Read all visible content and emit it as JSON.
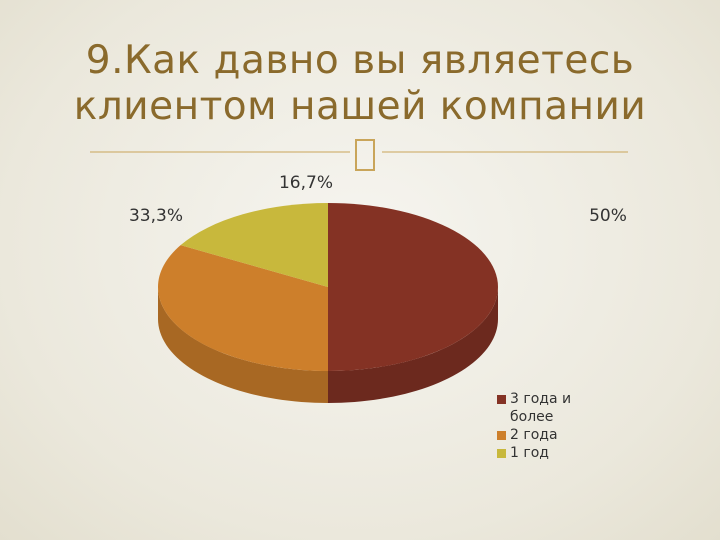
{
  "chart_data": {
    "type": "pie3d",
    "title": "9.Как давно вы являетесь клиентом нашей компании",
    "categories": [
      "3 года и более",
      "2 года",
      "1 год"
    ],
    "values": [
      50,
      33.3,
      16.7
    ],
    "value_labels": [
      "50%",
      "33,3%",
      "16,7%"
    ],
    "colors": [
      "#843224",
      "#cd7f2b",
      "#c8b83c"
    ],
    "legend": "right"
  }
}
